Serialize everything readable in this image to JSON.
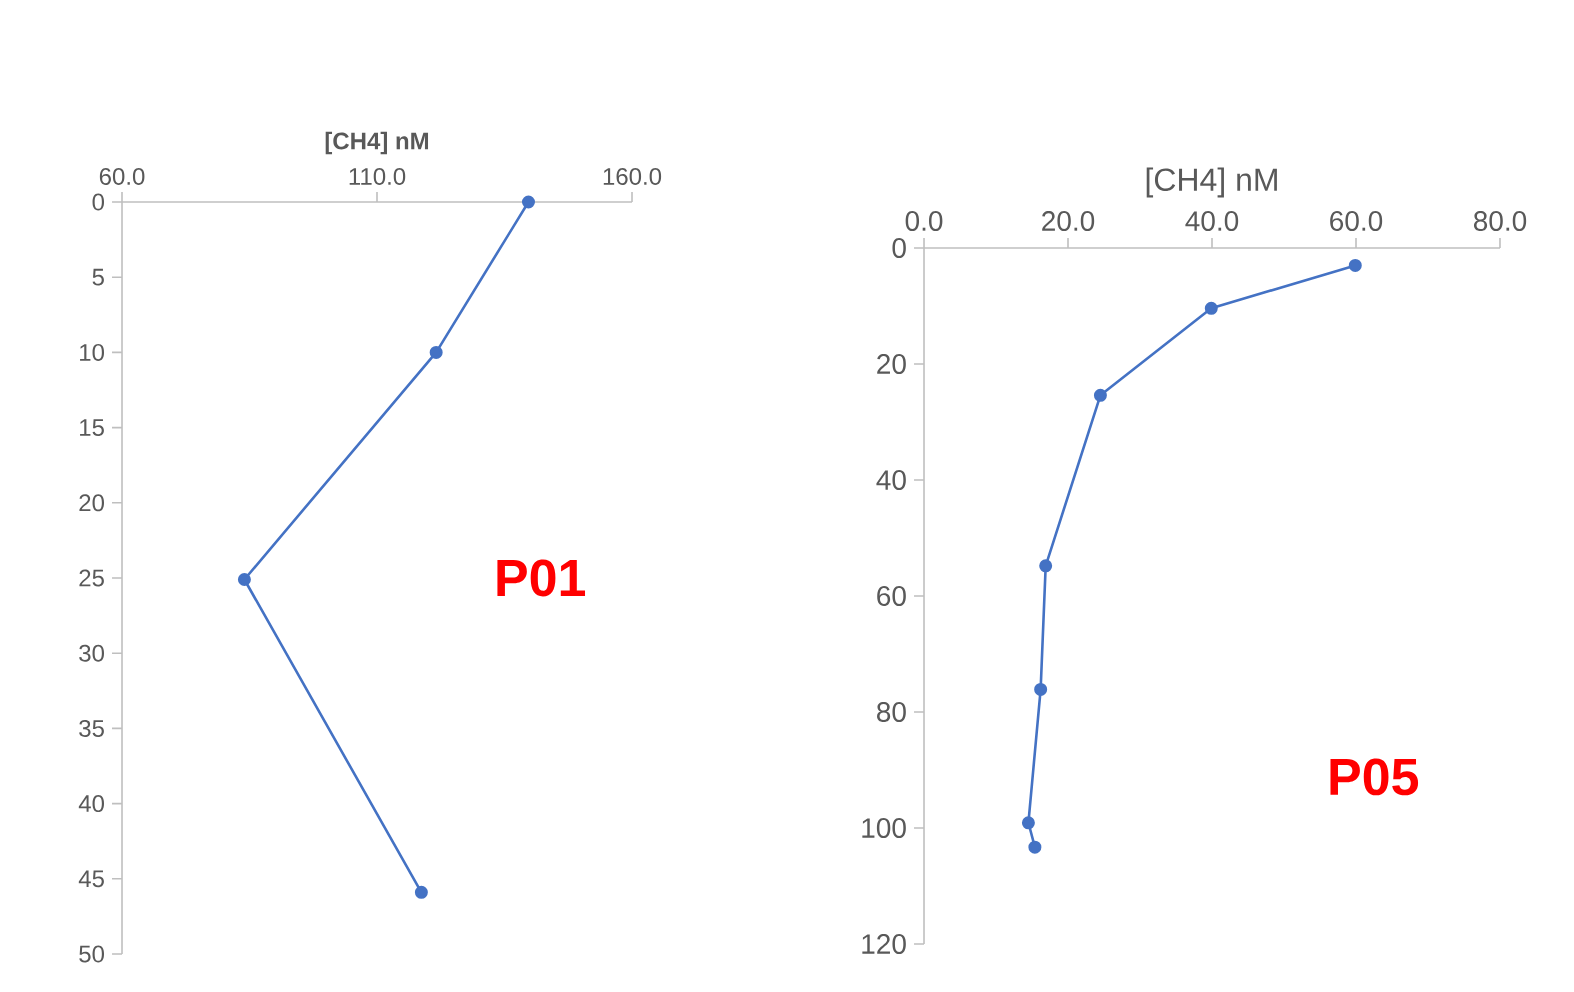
{
  "chart_data": [
    {
      "type": "line",
      "xlabel": "[CH4] nM",
      "xlim": [
        60,
        160
      ],
      "xticks": [
        {
          "value": 60,
          "label": "60.0"
        },
        {
          "value": 110,
          "label": "110.0"
        },
        {
          "value": 160,
          "label": "160.0"
        }
      ],
      "ylim": [
        50,
        0
      ],
      "yticks": [
        0,
        5,
        10,
        15,
        20,
        25,
        30,
        35,
        40,
        45,
        50
      ],
      "series": [
        {
          "color": "#4472c4",
          "x": [
            139.7,
            121.6,
            84,
            118.7
          ],
          "values": [
            0,
            10,
            25.1,
            45.9
          ]
        }
      ],
      "marker": "circle",
      "grid": false,
      "annotations": [
        "P01"
      ]
    },
    {
      "type": "line",
      "xlabel": "[CH4] nM",
      "xlim": [
        0,
        80
      ],
      "xticks": [
        {
          "value": 0,
          "label": "0.0"
        },
        {
          "value": 20,
          "label": "20.0"
        },
        {
          "value": 40,
          "label": "40.0"
        },
        {
          "value": 60,
          "label": "60.0"
        },
        {
          "value": 80,
          "label": "80.0"
        }
      ],
      "ylim": [
        120,
        0
      ],
      "yticks": [
        0,
        20,
        40,
        60,
        80,
        100,
        120
      ],
      "series": [
        {
          "color": "#4472c4",
          "x": [
            59.9,
            39.9,
            24.5,
            16.9,
            16.2,
            14.5,
            15.4
          ],
          "values": [
            3.0,
            10.4,
            25.4,
            54.8,
            76.1,
            99.1,
            103.3
          ]
        }
      ],
      "marker": "circle",
      "grid": false,
      "annotations": [
        "P05"
      ]
    }
  ]
}
